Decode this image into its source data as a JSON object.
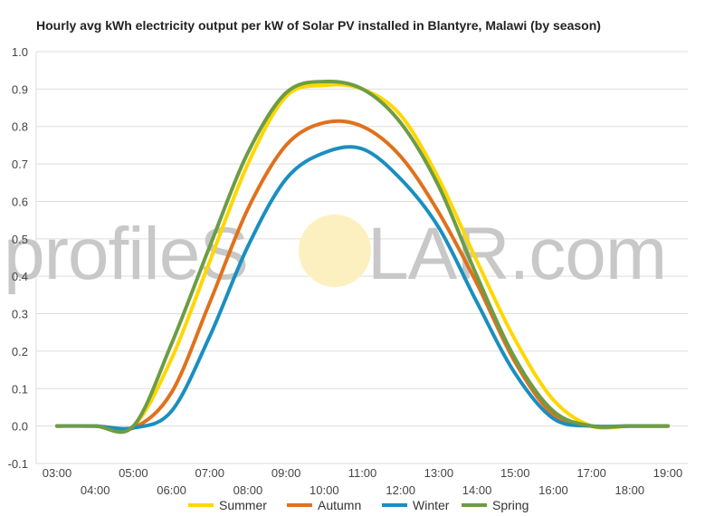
{
  "watermark": {
    "left": "profileS",
    "right": "LAR.com"
  },
  "colors": {
    "sun": "#fdf0c0",
    "watermark": "#c8c8c8"
  },
  "chart_data": {
    "type": "line",
    "title": "Hourly avg kWh electricity output per kW of Solar PV installed in Blantyre, Malawi (by season)",
    "xlabel": "",
    "ylabel": "",
    "x": [
      "03:00",
      "04:00",
      "05:00",
      "06:00",
      "07:00",
      "08:00",
      "09:00",
      "10:00",
      "11:00",
      "12:00",
      "13:00",
      "14:00",
      "15:00",
      "16:00",
      "17:00",
      "18:00",
      "19:00"
    ],
    "ylim": [
      -0.1,
      1.0
    ],
    "yticks": [
      "-0.1",
      "0.0",
      "0.1",
      "0.2",
      "0.3",
      "0.4",
      "0.5",
      "0.6",
      "0.7",
      "0.8",
      "0.9",
      "1.0"
    ],
    "grid": true,
    "legend": "bottom",
    "series": [
      {
        "name": "Summer",
        "color": "#ffd700",
        "values": [
          0.0,
          0.0,
          0.0,
          0.18,
          0.44,
          0.7,
          0.88,
          0.91,
          0.9,
          0.83,
          0.66,
          0.44,
          0.23,
          0.07,
          0.0,
          0.0,
          0.0
        ]
      },
      {
        "name": "Autumn",
        "color": "#e0711c",
        "values": [
          0.0,
          0.0,
          -0.005,
          0.09,
          0.33,
          0.58,
          0.75,
          0.81,
          0.8,
          0.72,
          0.57,
          0.38,
          0.17,
          0.03,
          0.0,
          0.0,
          0.0
        ]
      },
      {
        "name": "Winter",
        "color": "#1a8fbf",
        "values": [
          0.0,
          0.0,
          -0.005,
          0.04,
          0.24,
          0.48,
          0.66,
          0.73,
          0.74,
          0.66,
          0.53,
          0.33,
          0.14,
          0.02,
          0.0,
          0.0,
          0.0
        ]
      },
      {
        "name": "Spring",
        "color": "#6e9c45",
        "values": [
          0.0,
          0.0,
          0.0,
          0.22,
          0.48,
          0.73,
          0.89,
          0.92,
          0.9,
          0.81,
          0.64,
          0.4,
          0.18,
          0.04,
          0.0,
          0.0,
          0.0
        ]
      }
    ]
  }
}
